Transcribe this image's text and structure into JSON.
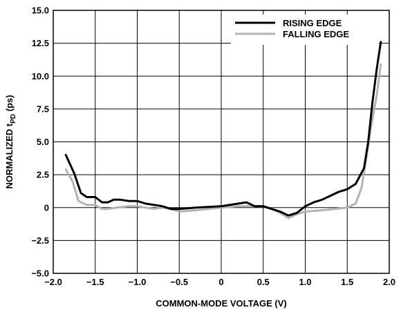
{
  "chart_data": {
    "type": "line",
    "title": "",
    "xlabel": "COMMON-MODE VOLTAGE (V)",
    "ylabel": {
      "main": "NORMALIZED t",
      "sub": "PD",
      "suffix": " (ps)"
    },
    "xlim": [
      -2.0,
      2.0
    ],
    "ylim": [
      -5.0,
      15.0
    ],
    "x_ticks": [
      -2.0,
      -1.5,
      -1.0,
      -0.5,
      0,
      0.5,
      1.0,
      1.5,
      2.0
    ],
    "x_tick_labels": [
      "−2.0",
      "−1.5",
      "−1.0",
      "−0.5",
      "0",
      "0.5",
      "1.0",
      "1.5",
      "2.0"
    ],
    "y_ticks": [
      -5.0,
      -2.5,
      0,
      2.5,
      5.0,
      7.5,
      10.0,
      12.5,
      15.0
    ],
    "y_tick_labels": [
      "−5.0",
      "−2.5",
      "0",
      "2.5",
      "5.0",
      "7.5",
      "10.0",
      "12.5",
      "15.0"
    ],
    "grid": true,
    "legend_position": "top-right",
    "series": [
      {
        "name": "RISING EDGE",
        "color": "#000000",
        "x": [
          -1.85,
          -1.75,
          -1.67,
          -1.6,
          -1.5,
          -1.42,
          -1.35,
          -1.28,
          -1.2,
          -1.1,
          -1.0,
          -0.9,
          -0.8,
          -0.7,
          -0.6,
          -0.5,
          -0.3,
          0,
          0.1,
          0.2,
          0.3,
          0.4,
          0.5,
          0.6,
          0.7,
          0.8,
          0.9,
          1.0,
          1.1,
          1.2,
          1.3,
          1.4,
          1.5,
          1.6,
          1.7,
          1.75,
          1.8,
          1.85,
          1.9
        ],
        "y": [
          4.0,
          2.6,
          1.1,
          0.8,
          0.8,
          0.4,
          0.4,
          0.6,
          0.6,
          0.5,
          0.5,
          0.3,
          0.2,
          0.1,
          -0.1,
          -0.1,
          0.0,
          0.1,
          0.2,
          0.3,
          0.4,
          0.1,
          0.1,
          -0.1,
          -0.3,
          -0.6,
          -0.4,
          0.1,
          0.4,
          0.6,
          0.9,
          1.2,
          1.4,
          1.8,
          3.0,
          5.0,
          8.0,
          10.5,
          12.6
        ]
      },
      {
        "name": "FALLING EDGE",
        "color": "#b3b3b3",
        "x": [
          -1.85,
          -1.77,
          -1.7,
          -1.6,
          -1.5,
          -1.42,
          -1.35,
          -1.25,
          -1.1,
          -1.0,
          -0.9,
          -0.8,
          -0.7,
          -0.6,
          -0.5,
          -0.3,
          0,
          0.2,
          0.4,
          0.5,
          0.6,
          0.7,
          0.8,
          0.9,
          1.0,
          1.2,
          1.35,
          1.5,
          1.6,
          1.67,
          1.72,
          1.78,
          1.85,
          1.9
        ],
        "y": [
          2.9,
          2.0,
          0.5,
          0.2,
          0.2,
          -0.1,
          -0.1,
          0.0,
          0.1,
          0.1,
          0.0,
          -0.1,
          0.0,
          -0.1,
          -0.3,
          -0.2,
          0.0,
          0.1,
          0.1,
          0.1,
          -0.1,
          -0.4,
          -0.8,
          -0.5,
          -0.3,
          -0.2,
          -0.1,
          0.0,
          0.3,
          1.5,
          3.5,
          6.0,
          8.5,
          10.9
        ]
      }
    ]
  }
}
